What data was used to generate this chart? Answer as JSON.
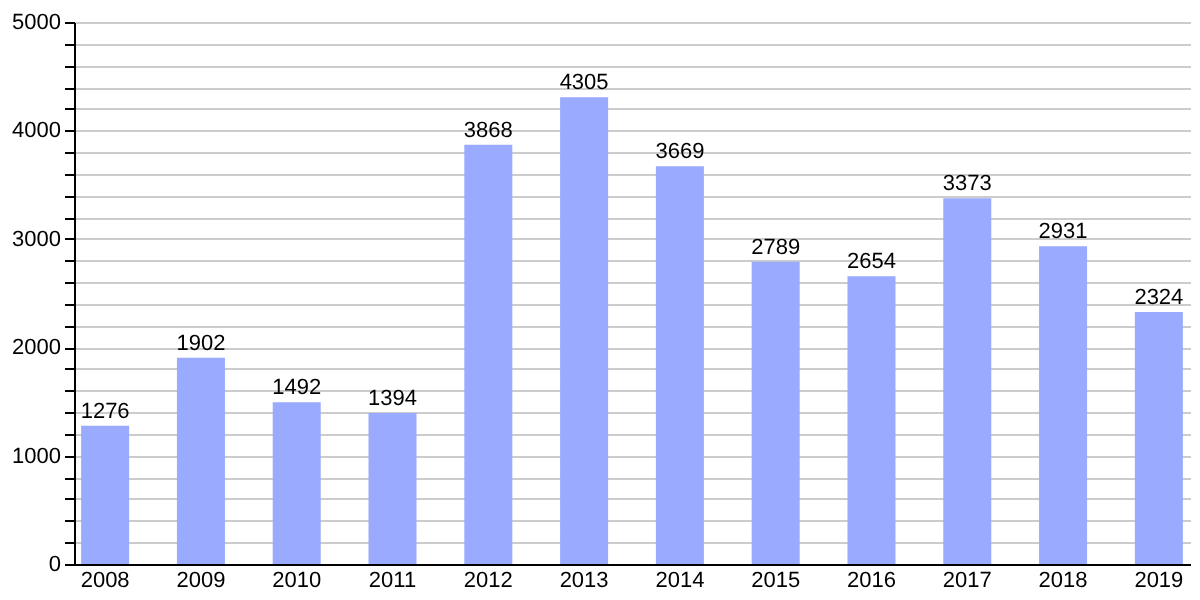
{
  "chart_data": {
    "type": "bar",
    "categories": [
      "2008",
      "2009",
      "2010",
      "2011",
      "2012",
      "2013",
      "2014",
      "2015",
      "2016",
      "2017",
      "2018",
      "2019"
    ],
    "values": [
      1276,
      1902,
      1492,
      1394,
      3868,
      4305,
      3669,
      2789,
      2654,
      3373,
      2931,
      2324
    ],
    "color": "#99aaff",
    "ylim": [
      0,
      5000
    ],
    "yticks": [
      0,
      {
        "value": 200,
        "label": null
      },
      {
        "value": 400,
        "label": null
      },
      {
        "value": 600,
        "label": null
      },
      {
        "value": 800,
        "label": null
      },
      1000,
      {
        "value": 1200,
        "label": null
      },
      {
        "value": 1400,
        "label": null
      },
      {
        "value": 1600,
        "label": null
      },
      {
        "value": 1800,
        "label": null
      },
      2000,
      {
        "value": 2200,
        "label": null
      },
      {
        "value": 2400,
        "label": null
      },
      {
        "value": 2600,
        "label": null
      },
      {
        "value": 2800,
        "label": null
      },
      3000,
      {
        "value": 3200,
        "label": null
      },
      {
        "value": 3400,
        "label": null
      },
      {
        "value": 3600,
        "label": null
      },
      {
        "value": 3800,
        "label": null
      },
      4000,
      {
        "value": 4200,
        "label": null
      },
      {
        "value": 4400,
        "label": null
      },
      {
        "value": 4600,
        "label": null
      },
      {
        "value": 4800,
        "label": null
      },
      5000
    ],
    "grid": "y",
    "data_labels": true
  }
}
